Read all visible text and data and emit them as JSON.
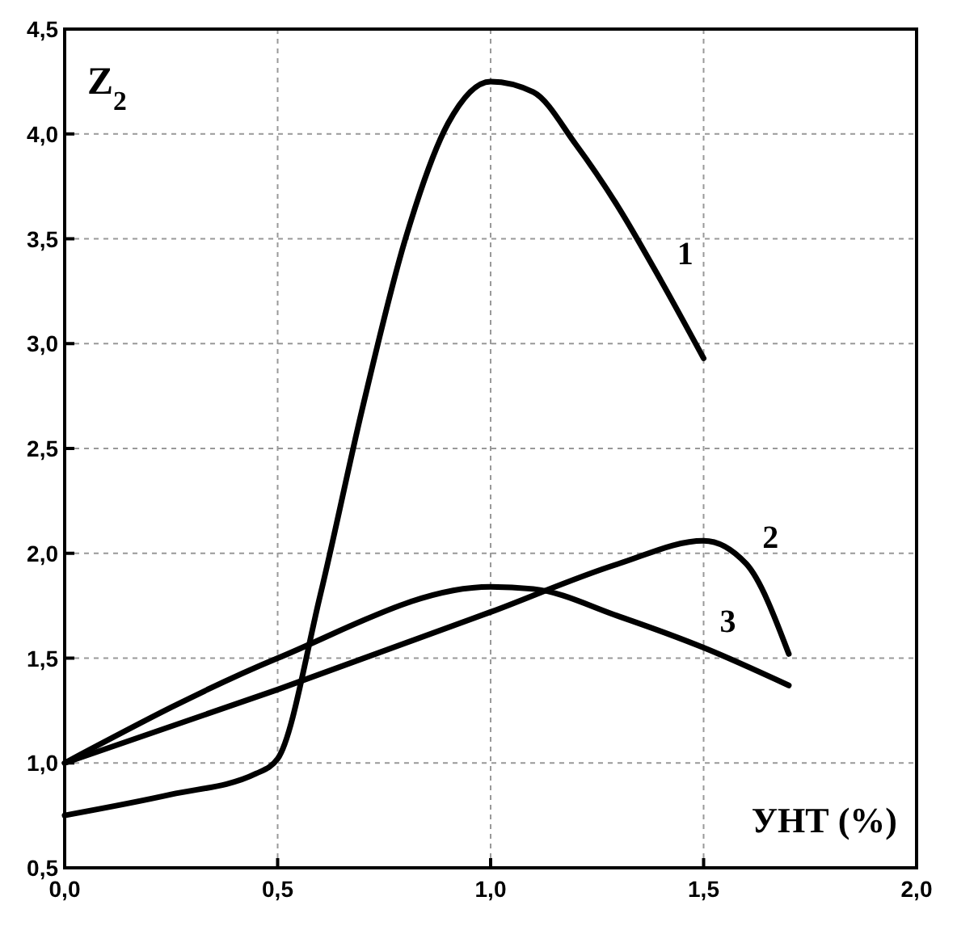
{
  "chart_data": {
    "type": "line",
    "xlabel": "УНТ (%)",
    "ylabel": "Z$_{2}$",
    "xlim": [
      0,
      2
    ],
    "ylim": [
      0.5,
      4.5
    ],
    "xticks": [
      {
        "value": 0,
        "label": "0,0"
      },
      {
        "value": 0.5,
        "label": "0,5"
      },
      {
        "value": 1,
        "label": "1,0"
      },
      {
        "value": 1.5,
        "label": "1,5"
      },
      {
        "value": 2,
        "label": "2,0"
      }
    ],
    "yticks": [
      {
        "value": 0.5,
        "label": "0,5"
      },
      {
        "value": 1,
        "label": "1,0"
      },
      {
        "value": 1.5,
        "label": "1,5"
      },
      {
        "value": 2,
        "label": "2,0"
      },
      {
        "value": 2.5,
        "label": "2,5"
      },
      {
        "value": 3,
        "label": "3,0"
      },
      {
        "value": 3.5,
        "label": "3,5"
      },
      {
        "value": 4,
        "label": "4,0"
      },
      {
        "value": 4.5,
        "label": "4,5"
      }
    ],
    "grid": true,
    "line_style": "solid",
    "marker": "none",
    "series": [
      {
        "name": "1",
        "color": "#000000",
        "x": [
          0,
          0.25,
          0.45,
          0.5,
          0.6,
          0.7,
          0.8,
          0.9,
          1.0,
          1.1,
          1.2,
          1.3,
          1.4,
          1.5
        ],
        "values": [
          0.75,
          0.85,
          0.95,
          1.02,
          1.8,
          2.7,
          3.5,
          4.05,
          4.25,
          4.2,
          3.95,
          3.65,
          3.3,
          2.93
        ]
      },
      {
        "name": "2",
        "color": "#000000",
        "x": [
          0,
          0.5,
          1.0,
          1.3,
          1.5,
          1.6,
          1.7
        ],
        "values": [
          1.0,
          1.35,
          1.72,
          1.95,
          2.06,
          1.95,
          1.52
        ]
      },
      {
        "name": "3",
        "color": "#000000",
        "x": [
          0,
          0.5,
          1.0,
          1.1,
          1.3,
          1.5,
          1.7
        ],
        "values": [
          1.0,
          1.5,
          1.84,
          1.83,
          1.7,
          1.55,
          1.37
        ]
      }
    ]
  }
}
